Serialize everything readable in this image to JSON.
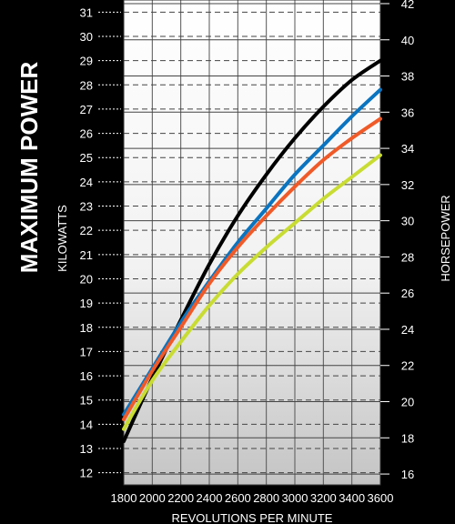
{
  "chart_data": {
    "type": "line",
    "title": "MAXIMUM POWER",
    "xlabel": "REVOLUTIONS PER MINUTE",
    "ylabel_left": "KILOWATTS",
    "ylabel_right": "HORSEPOWER",
    "xlim": [
      1800,
      3600
    ],
    "ylim_left": [
      11.5,
      31.5
    ],
    "ylim_right": [
      15.4,
      42.2
    ],
    "x_ticks": [
      "1800",
      "2000",
      "2200",
      "2400",
      "2600",
      "2800",
      "3000",
      "3200",
      "3400",
      "3600"
    ],
    "y_ticks_left": [
      "12",
      "13",
      "14",
      "15",
      "16",
      "17",
      "18",
      "19",
      "20",
      "21",
      "22",
      "23",
      "24",
      "25",
      "26",
      "27",
      "28",
      "29",
      "30",
      "31"
    ],
    "y_ticks_right": [
      "16",
      "18",
      "20",
      "22",
      "24",
      "26",
      "28",
      "30",
      "32",
      "34",
      "36",
      "38",
      "40",
      "42"
    ],
    "grid": true,
    "series": [
      {
        "color": "#000000",
        "x": [
          1800,
          2000,
          2200,
          2400,
          2600,
          2800,
          3000,
          3200,
          3400,
          3600
        ],
        "y": [
          13.3,
          15.9,
          18.3,
          20.6,
          22.6,
          24.3,
          25.8,
          27.1,
          28.2,
          29.0
        ]
      },
      {
        "color": "#0a74c0",
        "x": [
          1800,
          2000,
          2200,
          2400,
          2600,
          2800,
          3000,
          3200,
          3400,
          3600
        ],
        "y": [
          14.4,
          16.3,
          18.2,
          19.9,
          21.5,
          22.9,
          24.3,
          25.5,
          26.7,
          27.8
        ]
      },
      {
        "color": "#f05a28",
        "x": [
          1800,
          2000,
          2200,
          2400,
          2600,
          2800,
          3000,
          3200,
          3400,
          3600
        ],
        "y": [
          14.2,
          16.2,
          18.0,
          19.8,
          21.3,
          22.6,
          23.8,
          24.9,
          25.8,
          26.6
        ]
      },
      {
        "color": "#c8dc32",
        "x": [
          1800,
          2000,
          2200,
          2400,
          2600,
          2800,
          3000,
          3200,
          3400,
          3600
        ],
        "y": [
          13.8,
          15.8,
          17.4,
          18.9,
          20.2,
          21.3,
          22.3,
          23.3,
          24.2,
          25.1
        ]
      }
    ]
  }
}
